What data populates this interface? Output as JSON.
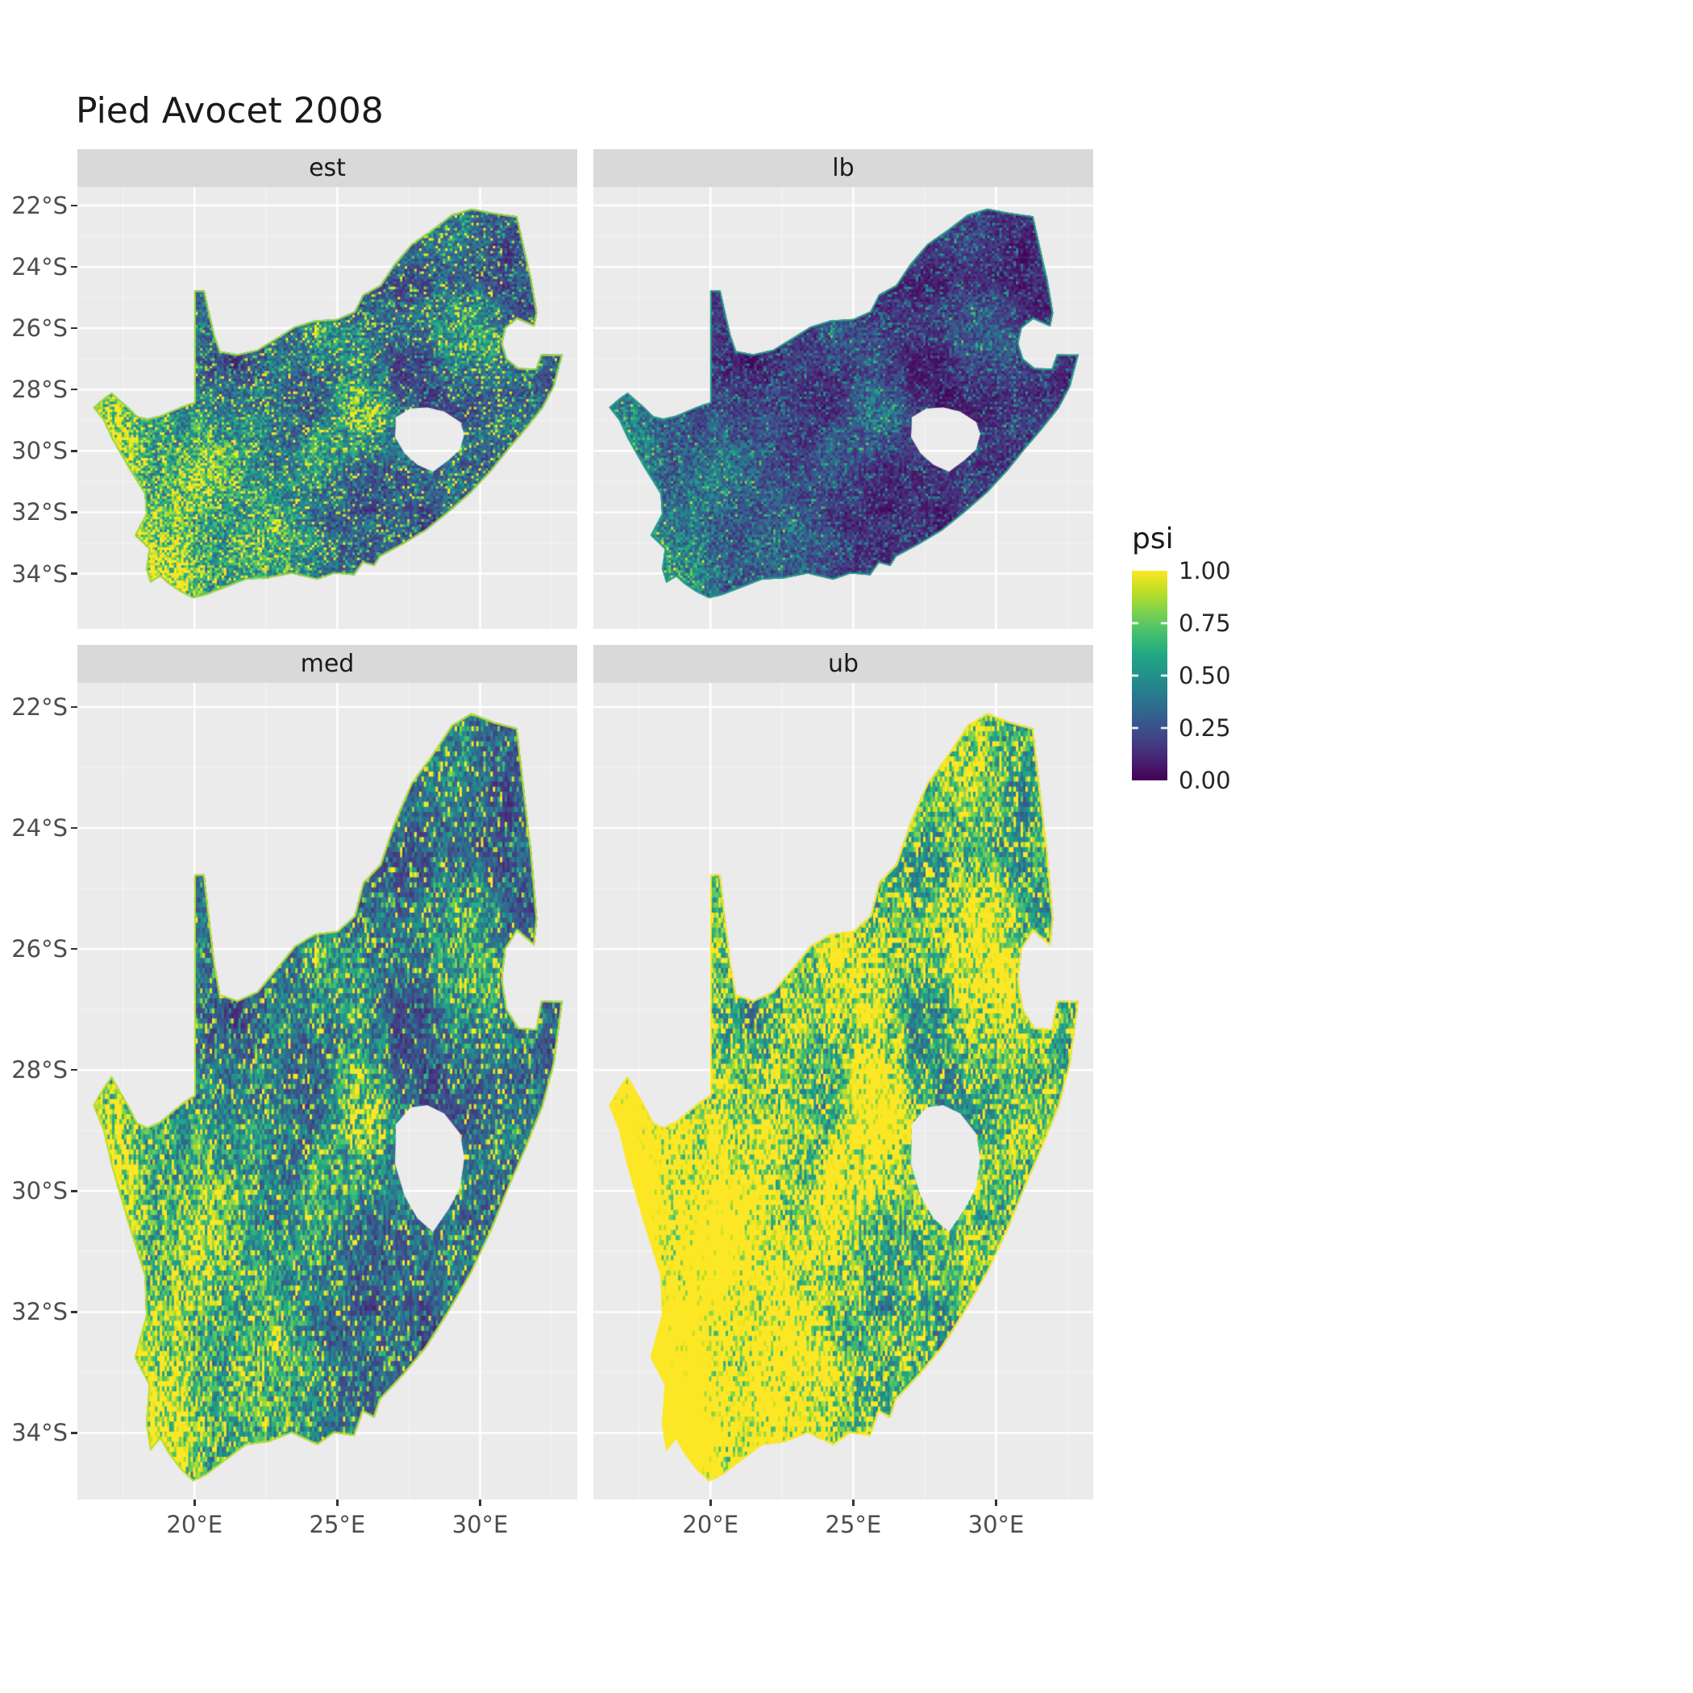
{
  "title": "Pied Avocet 2008",
  "legend": {
    "title": "psi",
    "labels": [
      "1.00",
      "0.75",
      "0.50",
      "0.25",
      "0.00"
    ],
    "tick_values": [
      1.0,
      0.75,
      0.5,
      0.25,
      0.0
    ],
    "tick_mark_values": [
      0.25,
      0.5,
      0.75
    ]
  },
  "axes": {
    "x": {
      "tick_labels": [
        "20°E",
        "25°E",
        "30°E"
      ],
      "tick_values": [
        20,
        25,
        30
      ],
      "minor_values": [
        17.5,
        22.5,
        27.5,
        32.5
      ],
      "range": [
        15.9,
        33.4
      ]
    },
    "y": {
      "tick_labels": [
        "22°S",
        "24°S",
        "26°S",
        "28°S",
        "30°S",
        "32°S",
        "34°S"
      ],
      "tick_values": [
        -22,
        -24,
        -26,
        -28,
        -30,
        -32,
        -34
      ],
      "minor_values": [
        -23,
        -25,
        -27,
        -29,
        -31,
        -33
      ],
      "range_row1": [
        -21.4,
        -35.8
      ],
      "range_row2": [
        -21.6,
        -35.1
      ]
    }
  },
  "colors": {
    "background": "#FFFFFF",
    "panel_bg": "#EBEBEB",
    "strip_bg": "#D9D9D9",
    "strip_text": "#1A1A1A",
    "grid_major": "#FFFFFF",
    "grid_minor": "#F5F5F5",
    "axis_text": "#4D4D4D",
    "title_text": "#1A1A1A"
  },
  "chart_data": {
    "type": "heatmap",
    "subtype": "faceted-raster-occupancy-map",
    "title": "Pied Avocet 2008",
    "region": "South Africa",
    "variable": "psi",
    "legend_position": "right",
    "scale": {
      "palette": "viridis",
      "domain": [
        0,
        1
      ],
      "breaks": [
        0.0,
        0.25,
        0.5,
        0.75,
        1.0
      ]
    },
    "facets": [
      {
        "label": "est",
        "intensity": {
          "gain": 1.0,
          "offset": -0.02,
          "rim": 0.85
        }
      },
      {
        "label": "lb",
        "intensity": {
          "gain": 0.55,
          "offset": -0.05,
          "rim": 0.55
        }
      },
      {
        "label": "med",
        "intensity": {
          "gain": 1.05,
          "offset": 0.0,
          "rim": 0.9
        }
      },
      {
        "label": "ub",
        "intensity": {
          "gain": 1.75,
          "offset": 0.1,
          "rim": 1.0
        }
      }
    ],
    "map_extent": {
      "lon": [
        16.45,
        32.9
      ],
      "lat": [
        -22.1,
        -34.85
      ]
    },
    "cell_size_deg": 0.0833,
    "viridis": [
      [
        0.0,
        "#440154"
      ],
      [
        0.1,
        "#482475"
      ],
      [
        0.2,
        "#414487"
      ],
      [
        0.3,
        "#355F8D"
      ],
      [
        0.4,
        "#2A788E"
      ],
      [
        0.5,
        "#21918C"
      ],
      [
        0.6,
        "#22A884"
      ],
      [
        0.7,
        "#44BF70"
      ],
      [
        0.8,
        "#7AD151"
      ],
      [
        0.9,
        "#BDDF26"
      ],
      [
        1.0,
        "#FDE725"
      ]
    ],
    "outline": [
      [
        16.45,
        -28.58
      ],
      [
        16.8,
        -28.3
      ],
      [
        17.1,
        -28.1
      ],
      [
        17.4,
        -28.35
      ],
      [
        17.65,
        -28.55
      ],
      [
        18.0,
        -28.87
      ],
      [
        18.35,
        -28.95
      ],
      [
        18.8,
        -28.85
      ],
      [
        19.3,
        -28.65
      ],
      [
        19.7,
        -28.5
      ],
      [
        19.99,
        -28.42
      ],
      [
        19.99,
        -24.77
      ],
      [
        20.35,
        -24.77
      ],
      [
        20.55,
        -25.6
      ],
      [
        20.7,
        -26.2
      ],
      [
        20.9,
        -26.75
      ],
      [
        21.5,
        -26.85
      ],
      [
        22.2,
        -26.7
      ],
      [
        22.9,
        -26.3
      ],
      [
        23.5,
        -25.95
      ],
      [
        24.2,
        -25.75
      ],
      [
        25.0,
        -25.7
      ],
      [
        25.6,
        -25.45
      ],
      [
        25.9,
        -24.9
      ],
      [
        26.5,
        -24.6
      ],
      [
        27.0,
        -23.9
      ],
      [
        27.6,
        -23.25
      ],
      [
        28.3,
        -22.8
      ],
      [
        29.0,
        -22.3
      ],
      [
        29.7,
        -22.1
      ],
      [
        30.5,
        -22.25
      ],
      [
        31.3,
        -22.35
      ],
      [
        31.6,
        -23.6
      ],
      [
        31.8,
        -24.4
      ],
      [
        32.0,
        -25.5
      ],
      [
        31.9,
        -25.95
      ],
      [
        31.3,
        -25.7
      ],
      [
        30.9,
        -26.0
      ],
      [
        30.78,
        -26.5
      ],
      [
        30.95,
        -27.0
      ],
      [
        31.35,
        -27.3
      ],
      [
        31.95,
        -27.32
      ],
      [
        32.13,
        -26.85
      ],
      [
        32.55,
        -26.86
      ],
      [
        32.89,
        -26.86
      ],
      [
        32.6,
        -27.9
      ],
      [
        32.2,
        -28.6
      ],
      [
        31.6,
        -29.3
      ],
      [
        31.0,
        -29.95
      ],
      [
        30.4,
        -30.65
      ],
      [
        29.7,
        -31.35
      ],
      [
        28.9,
        -32.0
      ],
      [
        28.1,
        -32.6
      ],
      [
        27.3,
        -33.05
      ],
      [
        26.5,
        -33.45
      ],
      [
        26.3,
        -33.75
      ],
      [
        25.9,
        -33.65
      ],
      [
        25.6,
        -34.05
      ],
      [
        24.9,
        -34.0
      ],
      [
        24.3,
        -34.2
      ],
      [
        23.4,
        -34.0
      ],
      [
        22.6,
        -34.15
      ],
      [
        21.8,
        -34.2
      ],
      [
        21.1,
        -34.45
      ],
      [
        20.4,
        -34.7
      ],
      [
        19.95,
        -34.8
      ],
      [
        19.5,
        -34.6
      ],
      [
        19.1,
        -34.35
      ],
      [
        18.8,
        -34.1
      ],
      [
        18.45,
        -34.3
      ],
      [
        18.3,
        -33.85
      ],
      [
        18.4,
        -33.2
      ],
      [
        17.9,
        -32.75
      ],
      [
        18.3,
        -32.05
      ],
      [
        18.25,
        -31.4
      ],
      [
        17.65,
        -30.5
      ],
      [
        17.1,
        -29.6
      ],
      [
        16.8,
        -29.0
      ]
    ],
    "hole_lesotho": [
      [
        27.05,
        -28.9
      ],
      [
        27.55,
        -28.62
      ],
      [
        28.15,
        -28.58
      ],
      [
        28.75,
        -28.72
      ],
      [
        29.3,
        -29.05
      ],
      [
        29.45,
        -29.45
      ],
      [
        29.3,
        -29.95
      ],
      [
        28.9,
        -30.3
      ],
      [
        28.35,
        -30.68
      ],
      [
        27.8,
        -30.45
      ],
      [
        27.35,
        -30.08
      ],
      [
        27.02,
        -29.55
      ]
    ],
    "hotspots": [
      [
        20.4,
        -30.4,
        1.3,
        0.4
      ],
      [
        25.8,
        -28.7,
        0.8,
        0.45
      ],
      [
        25.2,
        -26.4,
        0.9,
        0.3
      ],
      [
        29.3,
        -26.2,
        1.0,
        0.28
      ],
      [
        22.5,
        -32.7,
        1.2,
        0.25
      ],
      [
        19.2,
        -33.6,
        0.9,
        0.28
      ],
      [
        24.5,
        -30.5,
        1.5,
        0.15
      ],
      [
        28.9,
        -23.5,
        1.0,
        0.15
      ],
      [
        19.0,
        -34.3,
        0.9,
        0.3
      ],
      [
        21.5,
        -34.1,
        0.8,
        0.22
      ],
      [
        24.0,
        -33.9,
        0.9,
        0.18
      ],
      [
        17.9,
        -32.6,
        0.8,
        0.28
      ],
      [
        17.3,
        -30.2,
        0.7,
        0.3
      ],
      [
        16.9,
        -28.9,
        0.6,
        0.3
      ],
      [
        30.5,
        -29.5,
        0.8,
        0.12
      ],
      [
        31.5,
        -28.6,
        0.7,
        0.12
      ]
    ]
  }
}
